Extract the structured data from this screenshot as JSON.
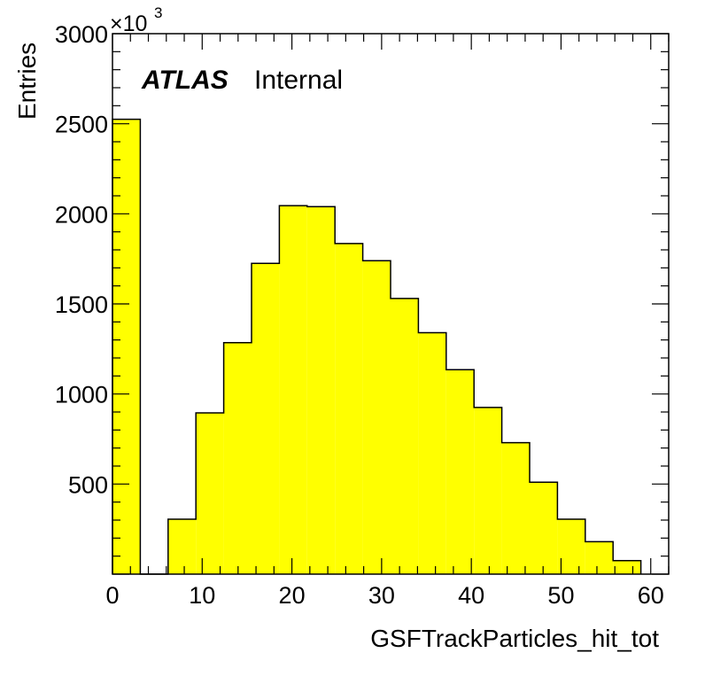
{
  "chart_data": {
    "type": "bar",
    "title": "",
    "xlabel": "GSFTrackParticles_hit_tot",
    "ylabel": "Entries",
    "y_scale_base": "×10",
    "y_scale_exponent": "3",
    "annotation_bold": "ATLAS",
    "annotation_normal": "Internal",
    "xlim": [
      0,
      62
    ],
    "ylim": [
      0,
      3000
    ],
    "x_ticks": [
      0,
      10,
      20,
      30,
      40,
      50,
      60
    ],
    "y_ticks": [
      500,
      1000,
      1500,
      2000,
      2500,
      3000
    ],
    "bin_width": 3.1,
    "bin_edges": [
      0,
      3.1,
      6.2,
      9.3,
      12.4,
      15.5,
      18.6,
      21.7,
      24.8,
      27.9,
      31.0,
      34.1,
      37.2,
      40.3,
      43.4,
      46.5,
      49.6,
      52.7,
      55.8,
      58.9
    ],
    "values": [
      2525,
      0,
      305,
      895,
      1285,
      1725,
      2045,
      2040,
      1835,
      1740,
      1530,
      1340,
      1135,
      925,
      730,
      510,
      305,
      180,
      75
    ],
    "fill_color": "#ffff00",
    "line_color": "#000000",
    "grid": false
  }
}
